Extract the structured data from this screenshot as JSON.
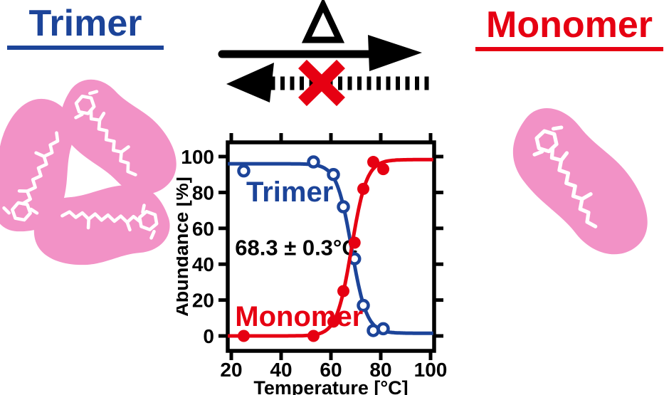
{
  "figure": {
    "trimer_heading": "Trimer",
    "monomer_heading": "Monomer",
    "delta_symbol": "Δ"
  },
  "colors": {
    "trimer_blue": "#1C4499",
    "monomer_red": "#E60012",
    "molecule_pink": "#F292C6",
    "ink_black": "#000000"
  },
  "chart_data": {
    "type": "scatter",
    "title": "",
    "xlabel": "Temperature [°C]",
    "ylabel": "Abundance [%]",
    "xlim": [
      18.6,
      101.4
    ],
    "ylim": [
      -8,
      108
    ],
    "xticks": [
      20,
      40,
      60,
      80,
      100
    ],
    "yticks": [
      0,
      20,
      40,
      60,
      80,
      100
    ],
    "grid": false,
    "legend_position": "text-labels-inside-plot",
    "annotation": {
      "text": "68.3 ± 0.3°C",
      "T": 21.5,
      "pct": 45
    },
    "series": [
      {
        "name": "Trimer",
        "color": "#1C4499",
        "marker": "open-circle",
        "points": {
          "T": [
            25,
            53,
            61,
            65,
            69.5,
            73,
            77,
            81
          ],
          "pct": [
            92,
            97,
            90,
            72,
            43,
            17,
            3,
            4
          ]
        },
        "fit_sigmoid": {
          "midpoint_C": 68.3,
          "rate_C": 3.0,
          "left_plateau_pct": 96,
          "right_plateau_pct": 1.5
        },
        "label": {
          "T": 26,
          "pct": 75
        }
      },
      {
        "name": "Monomer",
        "color": "#E60012",
        "marker": "filled-circle",
        "points": {
          "T": [
            25,
            53,
            61,
            65,
            69.5,
            73,
            77,
            81
          ],
          "pct": [
            0,
            0,
            8,
            25,
            52,
            82,
            97,
            93
          ]
        },
        "fit_sigmoid": {
          "midpoint_C": 68.3,
          "rate_C": 3.0,
          "left_plateau_pct": 0,
          "right_plateau_pct": 98.3
        },
        "label": {
          "T": 21.5,
          "pct": 5.5
        }
      }
    ]
  }
}
